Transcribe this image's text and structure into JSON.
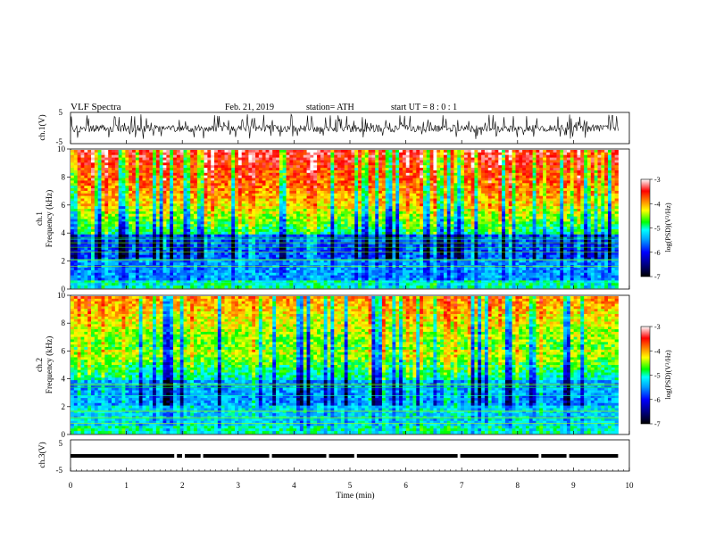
{
  "header": {
    "title": "VLF  Spectra",
    "date": "Feb. 21, 2019",
    "station": "station= ATH",
    "start_ut": "start  UT  =   8  : 0  : 1"
  },
  "chart_data": {
    "type": "heatmap",
    "time_axis": {
      "label": "Time  (min)",
      "range": [
        0,
        10
      ],
      "ticks": [
        "0",
        "1",
        "2",
        "3",
        "4",
        "5",
        "6",
        "7",
        "8",
        "9",
        "10"
      ],
      "data_end": 9.8
    },
    "panels": [
      {
        "id": "ch1-waveform",
        "type": "line",
        "ylabel": "ch.1(V)",
        "ylim": [
          -5,
          5
        ],
        "yticks": [
          "5",
          "-5"
        ]
      },
      {
        "id": "ch1-spectrogram",
        "type": "heatmap",
        "ylabel_top": "ch.1",
        "ylabel": "Frequency  (kHz)",
        "ylim": [
          0,
          10
        ],
        "yticks": [
          "0",
          "2",
          "4",
          "6",
          "8",
          "10"
        ],
        "colorbar": {
          "label": "log(PSD)(V²/Hz)",
          "range": [
            -7,
            -3
          ],
          "ticks": [
            "-3",
            "-4",
            "-5",
            "-6",
            "-7"
          ]
        }
      },
      {
        "id": "ch2-spectrogram",
        "type": "heatmap",
        "ylabel_top": "ch.2",
        "ylabel": "Frequency  (kHz)",
        "ylim": [
          0,
          10
        ],
        "yticks": [
          "0",
          "2",
          "4",
          "6",
          "8",
          "10"
        ],
        "colorbar": {
          "label": "log(PSD)(V²/Hz)",
          "range": [
            -7,
            -3
          ],
          "ticks": [
            "-3",
            "-4",
            "-5",
            "-6",
            "-7"
          ]
        }
      },
      {
        "id": "ch3-waveform",
        "type": "line",
        "ylabel": "ch.3(V)",
        "ylim": [
          -5,
          5
        ],
        "yticks": [
          "5",
          "-5"
        ]
      }
    ]
  },
  "colors": {
    "colormap": [
      "#000080",
      "#0000ff",
      "#0080ff",
      "#00ffff",
      "#00ff80",
      "#00ff00",
      "#80ff00",
      "#ffff00",
      "#ffa000",
      "#ff2000",
      "#ff0000",
      "#ffffff"
    ],
    "trace": "#000000"
  }
}
